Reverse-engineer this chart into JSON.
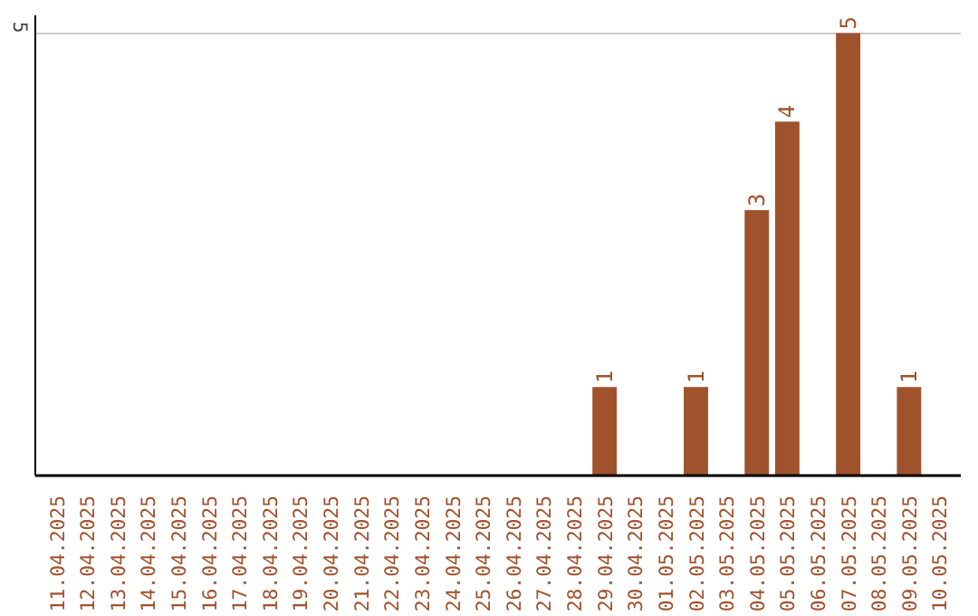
{
  "chart_data": {
    "type": "bar",
    "categories": [
      "11.04.2025",
      "12.04.2025",
      "13.04.2025",
      "14.04.2025",
      "15.04.2025",
      "16.04.2025",
      "17.04.2025",
      "18.04.2025",
      "19.04.2025",
      "20.04.2025",
      "21.04.2025",
      "22.04.2025",
      "23.04.2025",
      "24.04.2025",
      "25.04.2025",
      "26.04.2025",
      "27.04.2025",
      "28.04.2025",
      "29.04.2025",
      "30.04.2025",
      "01.05.2025",
      "02.05.2025",
      "03.05.2025",
      "04.05.2025",
      "05.05.2025",
      "06.05.2025",
      "07.05.2025",
      "08.05.2025",
      "09.05.2025",
      "10.05.2025"
    ],
    "values": [
      null,
      null,
      null,
      null,
      null,
      null,
      null,
      null,
      null,
      null,
      null,
      null,
      null,
      null,
      null,
      null,
      null,
      null,
      1,
      null,
      null,
      1,
      null,
      3,
      4,
      null,
      5,
      null,
      1,
      null
    ],
    "data_labels": true,
    "color": "#a0522d",
    "ylim": [
      0,
      5.2
    ],
    "yticks": [
      5
    ],
    "grid": "y"
  }
}
